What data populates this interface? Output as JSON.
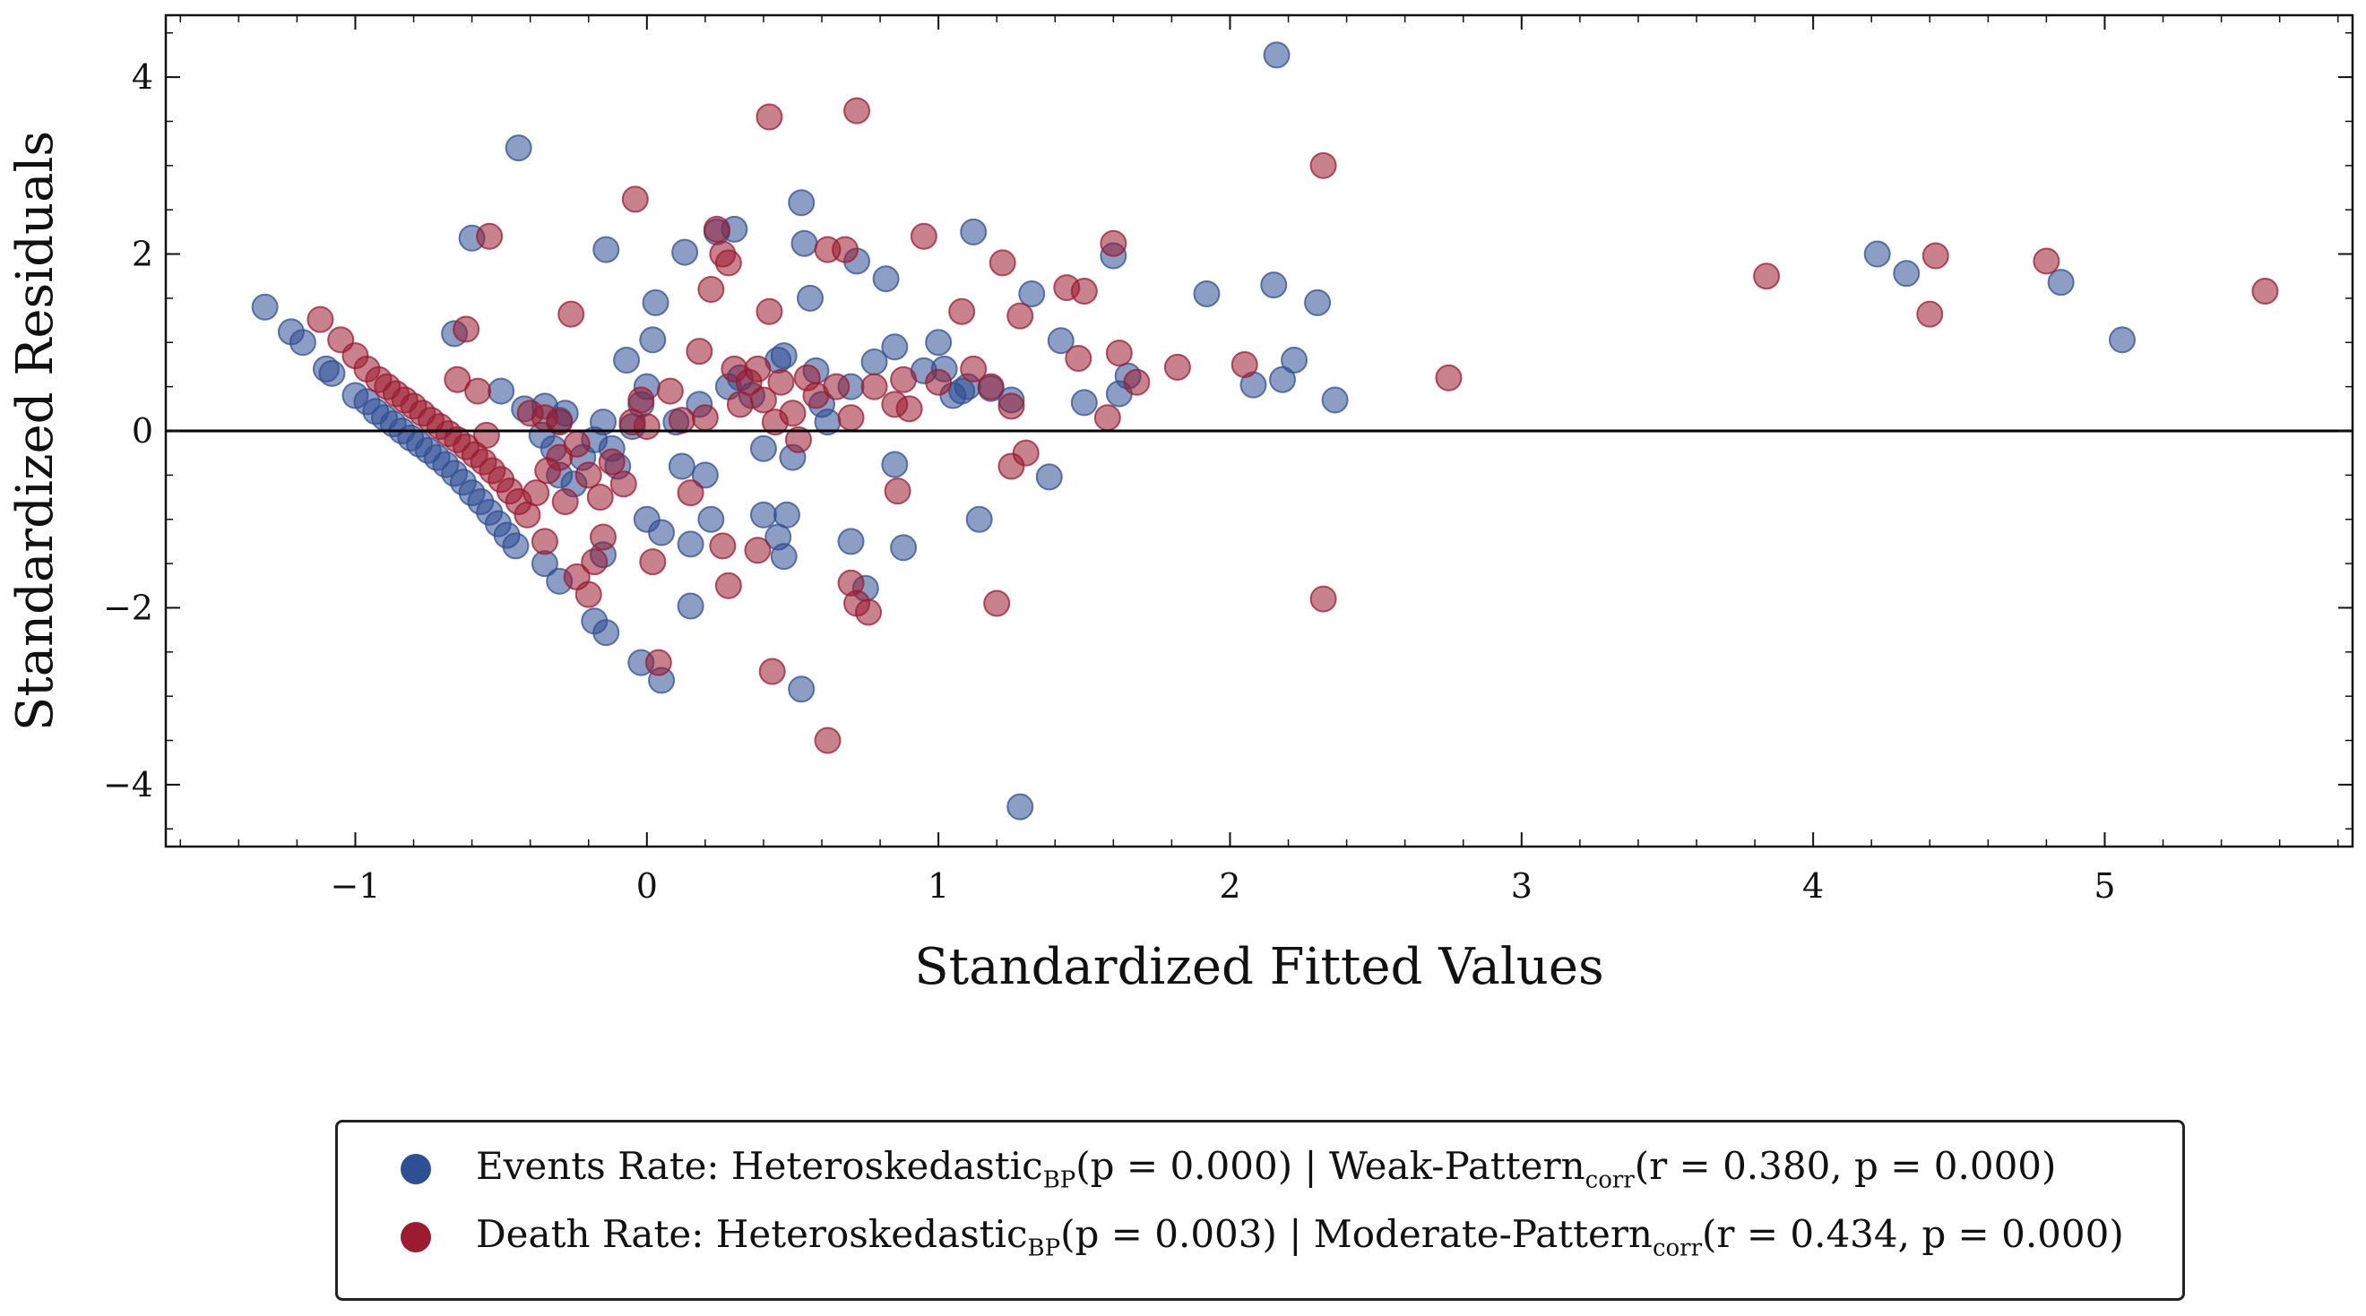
{
  "chart_data": {
    "type": "scatter",
    "title": "",
    "xlabel": "Standardized Fitted Values",
    "ylabel": "Standardized Residuals",
    "xlim": [
      -1.65,
      5.85
    ],
    "ylim": [
      -4.7,
      4.7
    ],
    "x_ticks": [
      -1,
      0,
      1,
      2,
      3,
      4,
      5
    ],
    "y_ticks": [
      -4,
      -2,
      0,
      2,
      4
    ],
    "x_tick_labels": [
      "−1",
      "0",
      "1",
      "2",
      "3",
      "4",
      "5"
    ],
    "y_tick_labels": [
      "−4",
      "−2",
      "0",
      "2",
      "4"
    ],
    "reference_line_y": 0,
    "grid": false,
    "legend_placement": "bottom-center",
    "series": [
      {
        "name": "Events Rate: Heteroskedastic_BP(p = 0.000) | Weak-Pattern_corr(r = 0.380, p = 0.000)",
        "color": "#2f4f93",
        "points": [
          [
            -1.31,
            1.4
          ],
          [
            -1.22,
            1.12
          ],
          [
            -1.18,
            1.0
          ],
          [
            -1.1,
            0.7
          ],
          [
            -1.08,
            0.65
          ],
          [
            -1.0,
            0.4
          ],
          [
            -0.96,
            0.33
          ],
          [
            -0.93,
            0.22
          ],
          [
            -0.9,
            0.15
          ],
          [
            -0.87,
            0.08
          ],
          [
            -0.84,
            0.0
          ],
          [
            -0.81,
            -0.08
          ],
          [
            -0.78,
            -0.15
          ],
          [
            -0.75,
            -0.22
          ],
          [
            -0.72,
            -0.3
          ],
          [
            -0.69,
            -0.38
          ],
          [
            -0.66,
            -0.48
          ],
          [
            -0.63,
            -0.58
          ],
          [
            -0.6,
            -0.7
          ],
          [
            -0.57,
            -0.8
          ],
          [
            -0.54,
            -0.92
          ],
          [
            -0.51,
            -1.05
          ],
          [
            -0.48,
            -1.18
          ],
          [
            -0.45,
            -1.3
          ],
          [
            -0.66,
            1.1
          ],
          [
            -0.6,
            2.18
          ],
          [
            -0.5,
            0.45
          ],
          [
            -0.44,
            3.2
          ],
          [
            -0.42,
            0.25
          ],
          [
            -0.35,
            0.28
          ],
          [
            -0.3,
            0.12
          ],
          [
            -0.28,
            0.2
          ],
          [
            -0.36,
            -0.05
          ],
          [
            -0.32,
            -0.2
          ],
          [
            -0.3,
            -0.5
          ],
          [
            -0.25,
            -0.6
          ],
          [
            -0.22,
            -0.3
          ],
          [
            -0.18,
            -0.1
          ],
          [
            -0.15,
            0.1
          ],
          [
            -0.12,
            -0.2
          ],
          [
            -0.1,
            -0.4
          ],
          [
            -0.05,
            0.05
          ],
          [
            -0.02,
            0.3
          ],
          [
            0.0,
            0.5
          ],
          [
            0.02,
            1.03
          ],
          [
            0.03,
            1.45
          ],
          [
            -0.07,
            0.8
          ],
          [
            -0.14,
            2.05
          ],
          [
            -0.35,
            -1.5
          ],
          [
            -0.3,
            -1.7
          ],
          [
            -0.18,
            -2.15
          ],
          [
            -0.14,
            -2.28
          ],
          [
            -0.15,
            -1.4
          ],
          [
            -0.02,
            -2.62
          ],
          [
            0.05,
            -2.82
          ],
          [
            0.0,
            -1.0
          ],
          [
            0.05,
            -1.15
          ],
          [
            0.1,
            0.1
          ],
          [
            0.12,
            -0.4
          ],
          [
            0.13,
            2.02
          ],
          [
            0.18,
            0.3
          ],
          [
            0.2,
            -0.5
          ],
          [
            0.22,
            -1.0
          ],
          [
            0.15,
            -1.28
          ],
          [
            0.15,
            -1.98
          ],
          [
            0.24,
            2.25
          ],
          [
            0.28,
            0.5
          ],
          [
            0.3,
            2.28
          ],
          [
            0.32,
            0.6
          ],
          [
            0.36,
            0.4
          ],
          [
            0.4,
            -0.2
          ],
          [
            0.45,
            0.8
          ],
          [
            0.47,
            0.85
          ],
          [
            0.5,
            -0.3
          ],
          [
            0.53,
            2.58
          ],
          [
            0.54,
            2.12
          ],
          [
            0.56,
            1.5
          ],
          [
            0.58,
            0.68
          ],
          [
            0.6,
            0.3
          ],
          [
            0.62,
            0.1
          ],
          [
            0.4,
            -0.95
          ],
          [
            0.45,
            -1.2
          ],
          [
            0.48,
            -0.95
          ],
          [
            0.47,
            -1.42
          ],
          [
            0.53,
            -2.92
          ],
          [
            0.7,
            0.5
          ],
          [
            0.72,
            1.92
          ],
          [
            0.75,
            -1.78
          ],
          [
            0.7,
            -1.25
          ],
          [
            0.78,
            0.78
          ],
          [
            0.82,
            1.72
          ],
          [
            0.85,
            0.95
          ],
          [
            0.88,
            -1.32
          ],
          [
            0.85,
            -0.38
          ],
          [
            0.95,
            0.68
          ],
          [
            1.0,
            1.0
          ],
          [
            1.02,
            0.7
          ],
          [
            1.05,
            0.4
          ],
          [
            1.08,
            0.45
          ],
          [
            1.1,
            0.5
          ],
          [
            1.12,
            2.25
          ],
          [
            1.14,
            -1.0
          ],
          [
            1.18,
            0.48
          ],
          [
            1.25,
            0.35
          ],
          [
            1.32,
            1.55
          ],
          [
            1.38,
            -0.52
          ],
          [
            1.42,
            1.02
          ],
          [
            1.5,
            0.32
          ],
          [
            1.6,
            1.98
          ],
          [
            1.62,
            0.42
          ],
          [
            1.65,
            0.62
          ],
          [
            1.92,
            1.55
          ],
          [
            2.08,
            0.52
          ],
          [
            2.15,
            1.65
          ],
          [
            2.16,
            4.25
          ],
          [
            2.18,
            0.58
          ],
          [
            2.22,
            0.8
          ],
          [
            2.3,
            1.45
          ],
          [
            2.36,
            0.35
          ],
          [
            1.28,
            -4.25
          ],
          [
            4.22,
            2.0
          ],
          [
            4.32,
            1.78
          ],
          [
            4.85,
            1.68
          ],
          [
            5.06,
            1.03
          ]
        ]
      },
      {
        "name": "Death Rate: Heteroskedastic_BP(p = 0.003) | Moderate-Pattern_corr(r = 0.434, p = 0.000)",
        "color": "#9b1b30",
        "points": [
          [
            -1.12,
            1.26
          ],
          [
            -1.05,
            1.03
          ],
          [
            -1.0,
            0.85
          ],
          [
            -0.96,
            0.7
          ],
          [
            -0.92,
            0.58
          ],
          [
            -0.89,
            0.5
          ],
          [
            -0.86,
            0.42
          ],
          [
            -0.83,
            0.35
          ],
          [
            -0.8,
            0.28
          ],
          [
            -0.77,
            0.2
          ],
          [
            -0.74,
            0.12
          ],
          [
            -0.71,
            0.05
          ],
          [
            -0.68,
            -0.03
          ],
          [
            -0.65,
            -0.1
          ],
          [
            -0.62,
            -0.18
          ],
          [
            -0.59,
            -0.27
          ],
          [
            -0.56,
            -0.35
          ],
          [
            -0.53,
            -0.45
          ],
          [
            -0.5,
            -0.55
          ],
          [
            -0.47,
            -0.68
          ],
          [
            -0.44,
            -0.8
          ],
          [
            -0.41,
            -0.95
          ],
          [
            -0.65,
            0.58
          ],
          [
            -0.62,
            1.15
          ],
          [
            -0.58,
            0.45
          ],
          [
            -0.54,
            2.2
          ],
          [
            -0.55,
            -0.05
          ],
          [
            -0.4,
            0.2
          ],
          [
            -0.35,
            0.15
          ],
          [
            -0.3,
            0.1
          ],
          [
            -0.26,
            1.32
          ],
          [
            -0.38,
            -0.7
          ],
          [
            -0.34,
            -0.45
          ],
          [
            -0.3,
            -0.3
          ],
          [
            -0.28,
            -0.8
          ],
          [
            -0.24,
            -0.15
          ],
          [
            -0.2,
            -0.5
          ],
          [
            -0.16,
            -0.75
          ],
          [
            -0.12,
            -0.35
          ],
          [
            -0.08,
            -0.6
          ],
          [
            -0.05,
            0.1
          ],
          [
            -0.02,
            0.35
          ],
          [
            0.0,
            0.05
          ],
          [
            -0.04,
            2.62
          ],
          [
            -0.35,
            -1.25
          ],
          [
            -0.24,
            -1.65
          ],
          [
            -0.2,
            -1.85
          ],
          [
            -0.18,
            -1.48
          ],
          [
            -0.15,
            -1.2
          ],
          [
            0.02,
            -1.48
          ],
          [
            0.04,
            -2.62
          ],
          [
            0.08,
            0.45
          ],
          [
            0.12,
            0.12
          ],
          [
            0.15,
            -0.7
          ],
          [
            0.18,
            0.9
          ],
          [
            0.2,
            0.15
          ],
          [
            0.22,
            1.6
          ],
          [
            0.24,
            2.28
          ],
          [
            0.26,
            2.0
          ],
          [
            0.28,
            1.9
          ],
          [
            0.3,
            0.7
          ],
          [
            0.32,
            0.3
          ],
          [
            0.35,
            0.55
          ],
          [
            0.38,
            0.7
          ],
          [
            0.4,
            0.35
          ],
          [
            0.42,
            1.35
          ],
          [
            0.44,
            0.1
          ],
          [
            0.46,
            0.55
          ],
          [
            0.5,
            0.2
          ],
          [
            0.52,
            -0.1
          ],
          [
            0.55,
            0.6
          ],
          [
            0.58,
            0.4
          ],
          [
            0.62,
            2.05
          ],
          [
            0.65,
            0.5
          ],
          [
            0.68,
            2.05
          ],
          [
            0.7,
            0.15
          ],
          [
            0.72,
            3.62
          ],
          [
            0.42,
            3.55
          ],
          [
            0.43,
            -2.72
          ],
          [
            0.62,
            -3.5
          ],
          [
            0.7,
            -1.72
          ],
          [
            0.72,
            -1.95
          ],
          [
            0.76,
            -2.05
          ],
          [
            0.26,
            -1.3
          ],
          [
            0.28,
            -1.75
          ],
          [
            0.38,
            -1.35
          ],
          [
            0.78,
            0.5
          ],
          [
            0.85,
            0.3
          ],
          [
            0.88,
            0.58
          ],
          [
            0.9,
            0.25
          ],
          [
            0.95,
            2.2
          ],
          [
            1.0,
            0.55
          ],
          [
            1.08,
            1.35
          ],
          [
            1.12,
            0.7
          ],
          [
            1.18,
            0.5
          ],
          [
            1.22,
            1.9
          ],
          [
            1.25,
            0.28
          ],
          [
            1.28,
            1.3
          ],
          [
            1.3,
            -0.25
          ],
          [
            1.25,
            -0.4
          ],
          [
            1.2,
            -1.95
          ],
          [
            1.44,
            1.62
          ],
          [
            1.48,
            0.82
          ],
          [
            1.5,
            1.58
          ],
          [
            1.58,
            0.15
          ],
          [
            1.6,
            2.12
          ],
          [
            1.62,
            0.88
          ],
          [
            1.68,
            0.55
          ],
          [
            1.82,
            0.72
          ],
          [
            2.05,
            0.75
          ],
          [
            2.32,
            3.0
          ],
          [
            2.32,
            -1.9
          ],
          [
            2.75,
            0.6
          ],
          [
            0.86,
            -0.68
          ],
          [
            3.84,
            1.75
          ],
          [
            4.4,
            1.32
          ],
          [
            4.42,
            1.98
          ],
          [
            4.8,
            1.92
          ],
          [
            5.55,
            1.58
          ]
        ]
      }
    ]
  },
  "legend": {
    "items": [
      {
        "color": "#2f4f93",
        "label_parts": {
          "a": "Events Rate: Heteroskedastic",
          "sub1": "BP",
          "b": "(p = 0.000) | Weak-Pattern",
          "sub2": "corr",
          "c": "(r = 0.380, p = 0.000)"
        }
      },
      {
        "color": "#9b1b30",
        "label_parts": {
          "a": "Death Rate: Heteroskedastic",
          "sub1": "BP",
          "b": "(p = 0.003) | Moderate-Pattern",
          "sub2": "corr",
          "c": "(r = 0.434, p = 0.000)"
        }
      }
    ]
  }
}
